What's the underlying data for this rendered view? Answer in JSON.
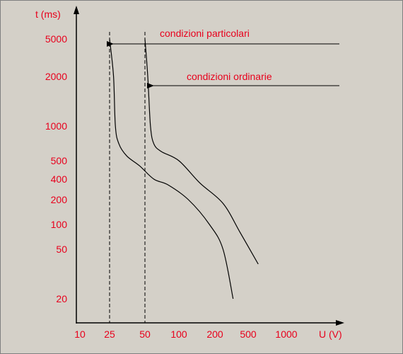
{
  "chart_data": {
    "type": "line",
    "title": "",
    "xlabel": "U (V)",
    "ylabel": "t (ms)",
    "x_scale": "log",
    "y_scale": "log",
    "x_ticks": [
      "10",
      "25",
      "50",
      "100",
      "200",
      "500",
      "1000"
    ],
    "y_ticks": [
      "5000",
      "2000",
      "1000",
      "500",
      "400",
      "200",
      "100",
      "50",
      "20"
    ],
    "grid": false,
    "colors": {
      "text": "#e8001c",
      "lines": "#000000",
      "background": "#d4d0c8"
    },
    "asymptotes": [
      {
        "x": 25,
        "style": "dashed"
      },
      {
        "x": 50,
        "style": "dashed"
      }
    ],
    "series": [
      {
        "points": [
          [
            25,
            5000
          ],
          [
            27,
            2000
          ],
          [
            28,
            1000
          ],
          [
            30,
            700
          ],
          [
            35,
            550
          ],
          [
            45,
            470
          ],
          [
            60,
            400
          ],
          [
            80,
            330
          ],
          [
            120,
            200
          ],
          [
            180,
            100
          ],
          [
            250,
            50
          ],
          [
            330,
            20
          ]
        ]
      },
      {
        "points": [
          [
            50,
            5000
          ],
          [
            53,
            2000
          ],
          [
            56,
            1000
          ],
          [
            60,
            700
          ],
          [
            70,
            600
          ],
          [
            100,
            500
          ],
          [
            150,
            350
          ],
          [
            250,
            180
          ],
          [
            400,
            80
          ],
          [
            600,
            38
          ]
        ]
      }
    ],
    "annotations": [
      {
        "text": "condizioni particolari",
        "target_series": 0
      },
      {
        "text": "condizioni ordinarie",
        "target_series": 1
      }
    ]
  }
}
